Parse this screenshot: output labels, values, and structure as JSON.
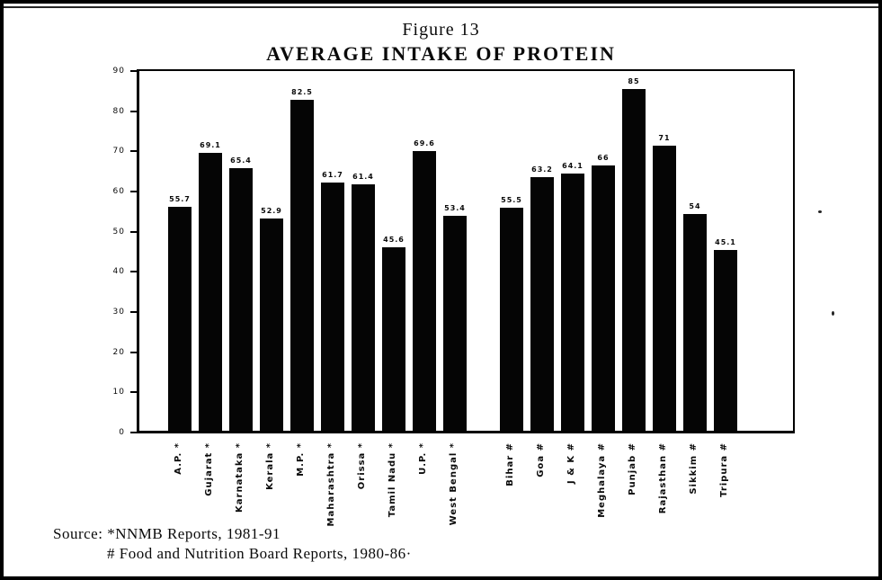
{
  "figure": {
    "figure_number": "Figure 13",
    "title": "AVERAGE INTAKE OF PROTEIN"
  },
  "source": {
    "prefix": "Source:",
    "line1": "*NNMB Reports, 1981-91",
    "line2": "# Food and Nutrition Board Reports, 1980-86·"
  },
  "chart_data": {
    "type": "bar",
    "title": "AVERAGE INTAKE OF PROTEIN",
    "xlabel": "",
    "ylabel": "",
    "ylim": [
      0,
      90
    ],
    "yticks": [
      0,
      10,
      20,
      30,
      40,
      50,
      60,
      70,
      80,
      90
    ],
    "grid": false,
    "legend": "none",
    "bar_color": "#050505",
    "groups": [
      {
        "name": "NNMB Reports, 1981-91",
        "marker": "*",
        "categories": [
          "A.P. *",
          "Gujarat *",
          "Karnataka *",
          "Kerala *",
          "M.P. *",
          "Maharashtra *",
          "Orissa *",
          "Tamil Nadu *",
          "U.P. *",
          "West Bengal *"
        ],
        "labels": [
          "55.7",
          "69.1",
          "65.4",
          "52.9",
          "82.5",
          "61.7",
          "61.4",
          "45.6",
          "69.6",
          "53.4"
        ],
        "values": [
          55.7,
          69.1,
          65.4,
          52.9,
          82.5,
          61.7,
          61.4,
          45.6,
          69.6,
          53.4
        ]
      },
      {
        "name": "Food and Nutrition Board Reports, 1980-86",
        "marker": "#",
        "categories": [
          "Bihar #",
          "Goa #",
          "J & K #",
          "Meghalaya #",
          "Punjab #",
          "Rajasthan #",
          "Sikkim #",
          "Tripura #"
        ],
        "labels": [
          "55.5",
          "63.2",
          "64.1",
          "66",
          "85",
          "71",
          "54",
          "45.1"
        ],
        "values": [
          55.5,
          63.2,
          64.1,
          66,
          85,
          71,
          54,
          45.1
        ]
      }
    ]
  }
}
